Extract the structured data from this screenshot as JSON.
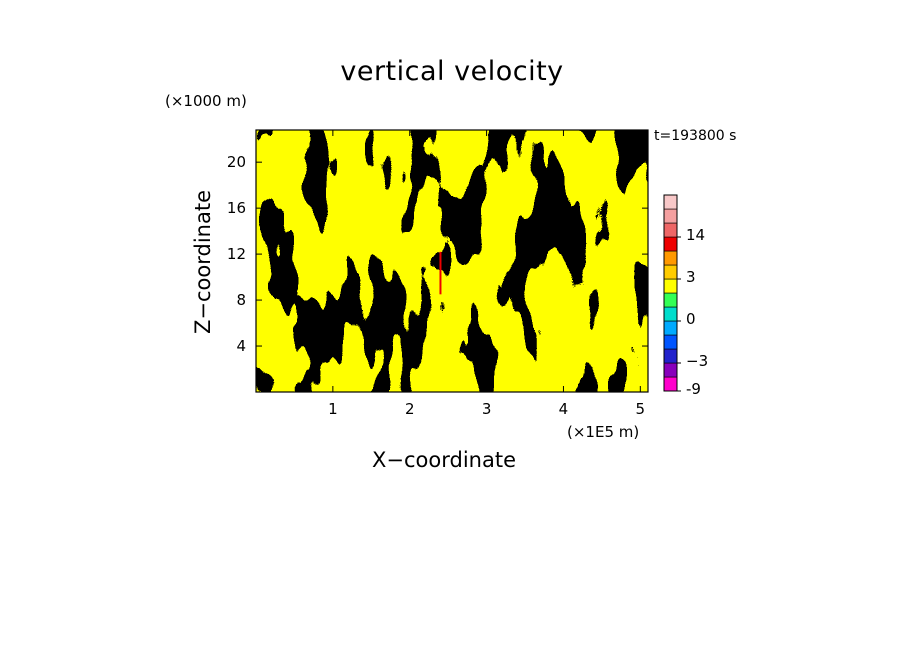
{
  "chart_data": {
    "type": "heatmap",
    "title": "vertical velocity",
    "xlabel": "X−coordinate",
    "ylabel": "Z−coordinate",
    "x_unit": "(×1E5 m)",
    "y_unit": "(×1000 m)",
    "time_label": "t=193800 s",
    "xlim": [
      0,
      5.1
    ],
    "ylim": [
      0,
      22.8
    ],
    "x_ticks": [
      1,
      2,
      3,
      4,
      5
    ],
    "y_ticks": [
      4,
      8,
      12,
      16,
      20
    ],
    "dominant_field_colors": {
      "negative": "#33ff55",
      "positive": "#ffff00"
    },
    "feature": {
      "description_values": {
        "x": 2.4,
        "z_min": 8.5,
        "z_max": 12.2
      }
    },
    "colorbar": {
      "levels": [
        -9,
        -6,
        -3,
        -2,
        -1,
        0,
        1,
        2,
        3,
        6,
        10,
        14,
        18,
        21
      ],
      "colors": [
        "#ff00cc",
        "#8800bb",
        "#2222cc",
        "#0055ff",
        "#00aaff",
        "#00ddcc",
        "#33ff55",
        "#ffff00",
        "#ffcc00",
        "#ff9900",
        "#ee0000",
        "#ee6666",
        "#f5a0a0",
        "#f8c8c8"
      ],
      "tick_labels": [
        "-9",
        "−3",
        "0",
        "3",
        "14"
      ],
      "tick_values": [
        -9,
        -3,
        0,
        3,
        14
      ]
    }
  }
}
